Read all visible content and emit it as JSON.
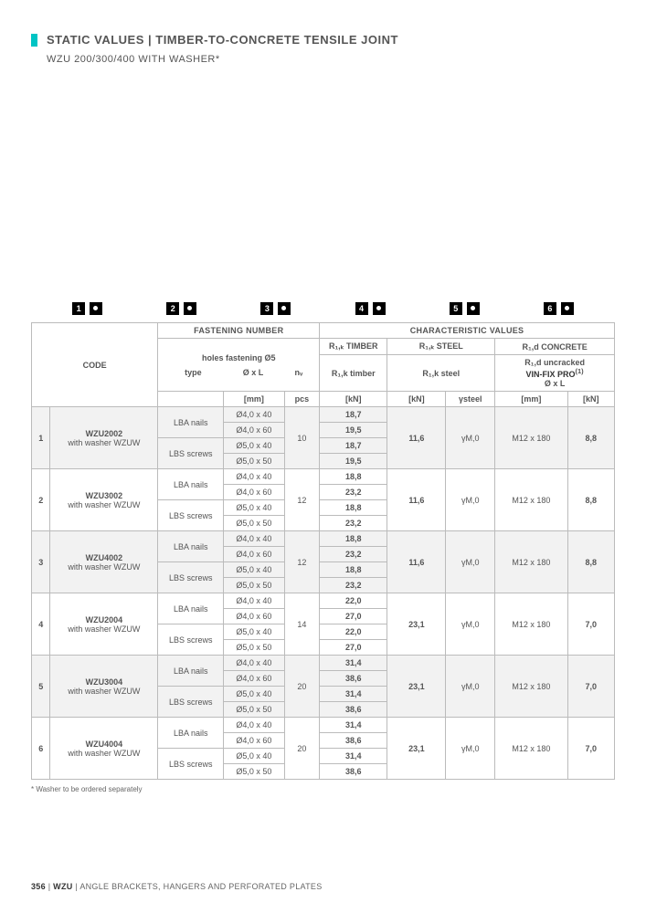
{
  "header": {
    "title": "STATIC VALUES | TIMBER-TO-CONCRETE TENSILE JOINT",
    "subtitle": "WZU 200/300/400 WITH WASHER*"
  },
  "diagram_nums": [
    "1",
    "2",
    "3",
    "4",
    "5",
    "6"
  ],
  "table": {
    "group_headers": {
      "fastening": "FASTENING NUMBER",
      "charvals": "CHARACTERISTIC VALUES"
    },
    "col_headers": {
      "code": "CODE",
      "holes": "holes fastening Ø5",
      "type": "type",
      "oxl": "Ø x L",
      "nv": "nᵥ",
      "timber_top": "R₁,ₖ TIMBER",
      "timber_sub": "R₁,k timber",
      "steel_top": "R₁,ₖ STEEL",
      "steel_sub": "R₁,k steel",
      "concrete_top": "R₁,d CONCRETE",
      "concrete_sub1": "R₁,d uncracked",
      "concrete_sub2": "VIN-FIX PRO",
      "sup": "(1)",
      "coxl": "Ø x L",
      "gamma": "γsteel"
    },
    "units": {
      "mm": "[mm]",
      "pcs": "pcs",
      "kn": "[kN]"
    },
    "rows": [
      {
        "n": "1",
        "code1": "WZU2002",
        "code2": "with washer WZUW",
        "nv": "10",
        "t_nails": [
          "18,7",
          "19,5"
        ],
        "t_screws": [
          "18,7",
          "19,5"
        ],
        "steel": "11,6",
        "gamma": "γM,0",
        "coxl": "M12 x 180",
        "ckn": "8,8"
      },
      {
        "n": "2",
        "code1": "WZU3002",
        "code2": "with washer WZUW",
        "nv": "12",
        "t_nails": [
          "18,8",
          "23,2"
        ],
        "t_screws": [
          "18,8",
          "23,2"
        ],
        "steel": "11,6",
        "gamma": "γM,0",
        "coxl": "M12 x 180",
        "ckn": "8,8"
      },
      {
        "n": "3",
        "code1": "WZU4002",
        "code2": "with washer WZUW",
        "nv": "12",
        "t_nails": [
          "18,8",
          "23,2"
        ],
        "t_screws": [
          "18,8",
          "23,2"
        ],
        "steel": "11,6",
        "gamma": "γM,0",
        "coxl": "M12 x 180",
        "ckn": "8,8"
      },
      {
        "n": "4",
        "code1": "WZU2004",
        "code2": "with washer WZUW",
        "nv": "14",
        "t_nails": [
          "22,0",
          "27,0"
        ],
        "t_screws": [
          "22,0",
          "27,0"
        ],
        "steel": "23,1",
        "gamma": "γM,0",
        "coxl": "M12 x 180",
        "ckn": "7,0"
      },
      {
        "n": "5",
        "code1": "WZU3004",
        "code2": "with washer WZUW",
        "nv": "20",
        "t_nails": [
          "31,4",
          "38,6"
        ],
        "t_screws": [
          "31,4",
          "38,6"
        ],
        "steel": "23,1",
        "gamma": "γM,0",
        "coxl": "M12 x 180",
        "ckn": "7,0"
      },
      {
        "n": "6",
        "code1": "WZU4004",
        "code2": "with washer WZUW",
        "nv": "20",
        "t_nails": [
          "31,4",
          "38,6"
        ],
        "t_screws": [
          "31,4",
          "38,6"
        ],
        "steel": "23,1",
        "gamma": "γM,0",
        "coxl": "M12 x 180",
        "ckn": "7,0"
      }
    ],
    "fast_types": {
      "nails": "LBA nails",
      "screws": "LBS screws"
    },
    "oxl_nails": [
      "Ø4,0 x 40",
      "Ø4,0 x 60"
    ],
    "oxl_screws": [
      "Ø5,0 x 40",
      "Ø5,0 x 50"
    ]
  },
  "footnote": "*   Washer to be ordered separately",
  "footer": {
    "page": "356",
    "sep": "  |  ",
    "code": "WZU",
    "rest": "  |  ANGLE BRACKETS, HANGERS  AND PERFORATED PLATES"
  }
}
